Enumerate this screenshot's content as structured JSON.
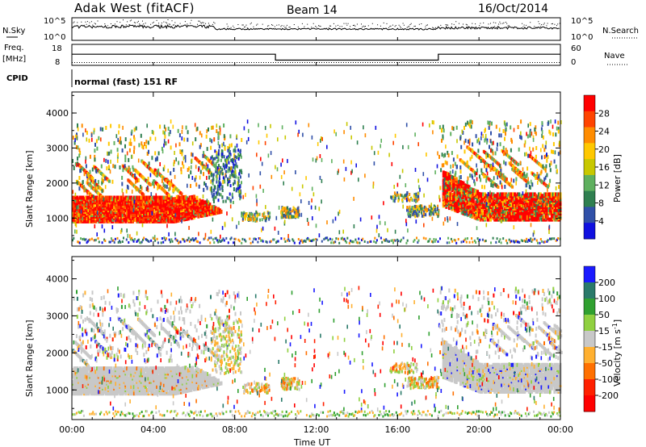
{
  "header": {
    "station": "Adak West (fitACF)",
    "beam": "Beam 14",
    "date": "16/Oct/2014"
  },
  "panels": {
    "sky": {
      "left_label": "N.Sky",
      "right_label": "N.Search",
      "left_ticks": [
        "10^5",
        "10^0"
      ],
      "right_ticks": [
        "10^5",
        "10^0"
      ]
    },
    "freq": {
      "left_label_1": "Freq.",
      "left_label_2": "[MHz]",
      "left_ticks": [
        "18",
        "8"
      ],
      "right_label": "Nave",
      "right_ticks": [
        "60",
        "0"
      ]
    },
    "cpid": {
      "label": "CPID",
      "mode_text": "normal (fast) 151 RF"
    }
  },
  "chart_data": [
    {
      "type": "line",
      "title": "",
      "x": [
        "00:00",
        "10:00",
        "10:00",
        "18:00",
        "18:00",
        "24:00"
      ],
      "series": [
        {
          "name": "Freq.",
          "values": [
            13.3,
            13.3,
            10.5,
            10.5,
            13.3,
            13.3
          ]
        },
        {
          "name": "Nave",
          "values": [
            8,
            8,
            8,
            8,
            8,
            8
          ]
        }
      ],
      "ylim_left": [
        8,
        18
      ],
      "ylim_right": [
        0,
        60
      ]
    },
    {
      "type": "heatmap",
      "title": "Power",
      "xlabel": "Time UT",
      "ylabel": "Slant Range [km]",
      "xlim": [
        0,
        24
      ],
      "ylim": [
        200,
        4600
      ],
      "x_ticks": [
        "00:00",
        "04:00",
        "08:00",
        "12:00",
        "16:00",
        "20:00",
        "00:00"
      ],
      "y_ticks": [
        "1000",
        "2000",
        "3000",
        "4000"
      ],
      "colorbar_label": "Power [dB]",
      "colorbar_ticks": [
        "28",
        "24",
        "20",
        "16",
        "12",
        "8",
        "4"
      ],
      "colors": [
        "#ff0000",
        "#ff4400",
        "#ff8c00",
        "#ffc800",
        "#c8c800",
        "#5fb05f",
        "#2f7f50",
        "#3050a8",
        "#1010e0"
      ]
    },
    {
      "type": "heatmap",
      "title": "Velocity",
      "xlabel": "Time UT",
      "ylabel": "Slant Range [km]",
      "xlim": [
        0,
        24
      ],
      "ylim": [
        200,
        4600
      ],
      "x_ticks": [
        "00:00",
        "04:00",
        "08:00",
        "12:00",
        "16:00",
        "20:00",
        "00:00"
      ],
      "y_ticks": [
        "1000",
        "2000",
        "3000",
        "4000"
      ],
      "colorbar_label": "Velocity [m s",
      "colorbar_label_sup": "-1",
      "colorbar_label_end": "]",
      "colorbar_ticks": [
        "200",
        "100",
        "50",
        "15",
        "-15",
        "-50",
        "-100",
        "-200"
      ],
      "colors": [
        "#1a1aff",
        "#2a7a6a",
        "#30a030",
        "#90d040",
        "#c8c8c8",
        "#ffb030",
        "#ff7000",
        "#ff2000",
        "#ff0000"
      ]
    }
  ],
  "axis": {
    "time_label": "Time UT",
    "range_label": "Slant Range [km]"
  }
}
